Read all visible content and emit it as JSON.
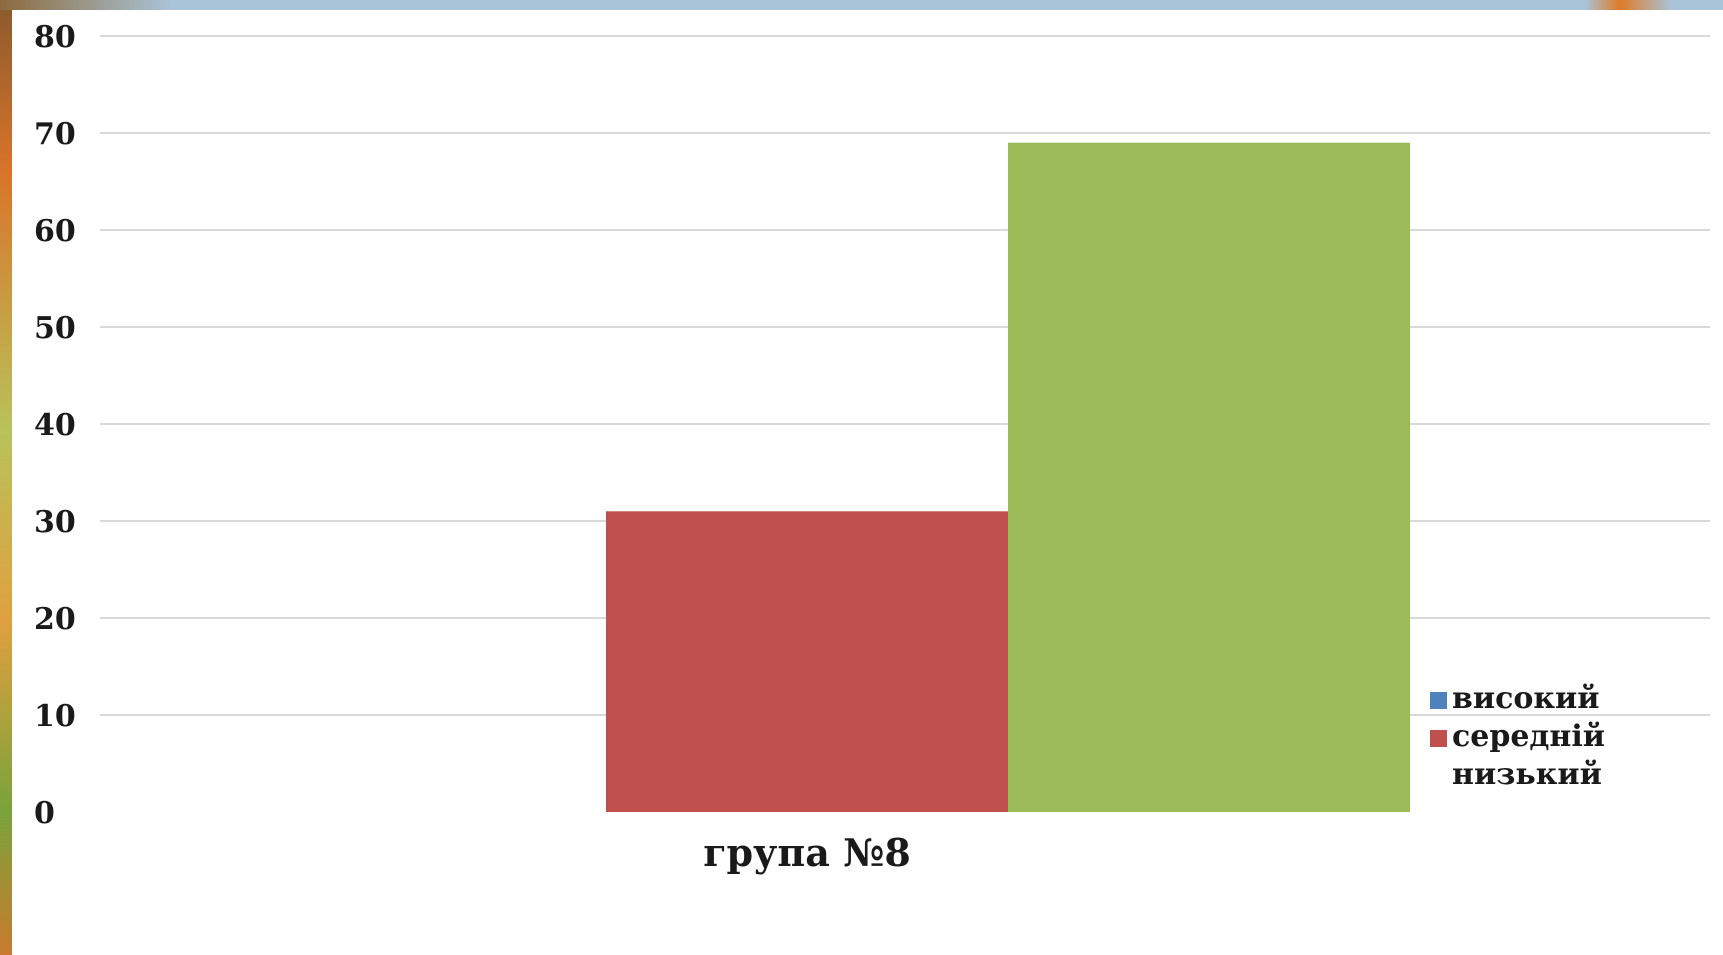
{
  "chart_data": {
    "type": "bar",
    "title": "",
    "xlabel": "",
    "ylabel": "",
    "categories": [
      "група №8"
    ],
    "series": [
      {
        "name": "високий",
        "values": [
          0
        ],
        "color": "#4f81bd"
      },
      {
        "name": "середній",
        "values": [
          31
        ],
        "color": "#c0504d"
      },
      {
        "name": "низький",
        "values": [
          69
        ],
        "color": "#9bbb59"
      }
    ],
    "ylim": [
      0,
      80
    ],
    "yticks": [
      0,
      10,
      20,
      30,
      40,
      50,
      60,
      70,
      80
    ],
    "grid": true,
    "legend_position": "bottom-right"
  }
}
